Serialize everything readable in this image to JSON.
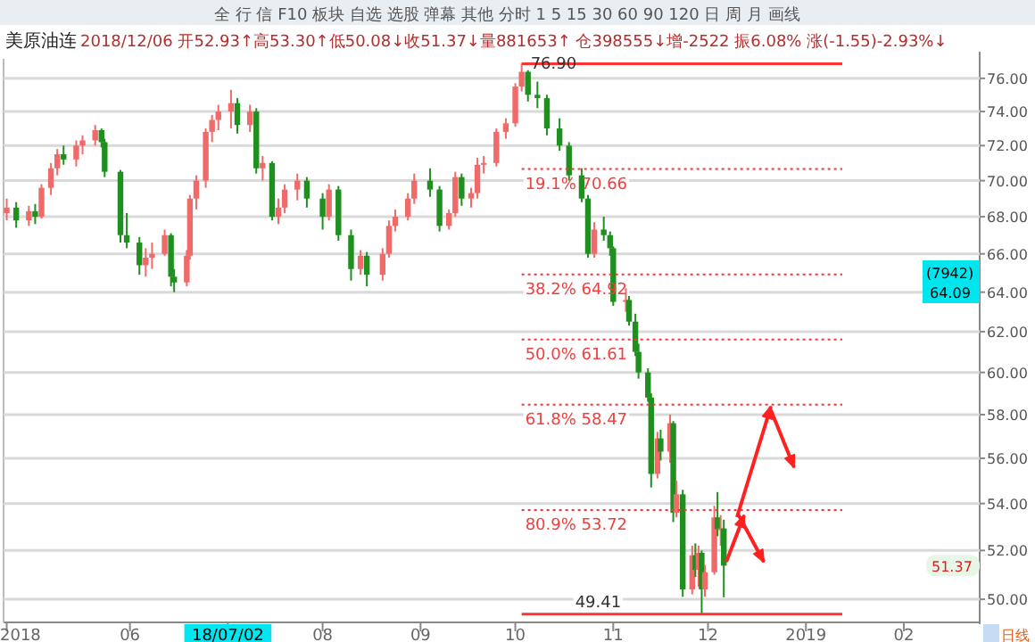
{
  "chart_data": {
    "type": "candlestick",
    "title": "美原油连",
    "subtitle": "2018/12/06 开52.93↑高53.30↑低50.08↓收51.37↓量881653↑ 仓398555↓增-2522 振6.08% 涨(-1.55)-2.93%↓",
    "x": [
      "2018-04-23",
      "2018-04-26",
      "2018-04-30",
      "2018-05-02",
      "2018-05-04",
      "2018-05-07",
      "2018-05-09",
      "2018-05-11",
      "2018-05-15",
      "2018-05-17",
      "2018-05-21",
      "2018-05-23",
      "2018-05-24",
      "2018-05-29",
      "2018-05-31",
      "2018-06-04",
      "2018-06-06",
      "2018-06-08",
      "2018-06-12",
      "2018-06-14",
      "2018-06-15",
      "2018-06-19",
      "2018-06-20",
      "2018-06-22",
      "2018-06-25",
      "2018-06-27",
      "2018-06-29",
      "2018-07-03",
      "2018-07-05",
      "2018-07-09",
      "2018-07-11",
      "2018-07-13",
      "2018-07-16",
      "2018-07-18",
      "2018-07-20",
      "2018-07-24",
      "2018-07-27",
      "2018-08-01",
      "2018-08-03",
      "2018-08-06",
      "2018-08-10",
      "2018-08-13",
      "2018-08-15",
      "2018-08-20",
      "2018-08-22",
      "2018-08-24",
      "2018-08-28",
      "2018-08-30",
      "2018-09-04",
      "2018-09-07",
      "2018-09-10",
      "2018-09-12",
      "2018-09-14",
      "2018-09-17",
      "2018-09-19",
      "2018-09-21",
      "2018-09-25",
      "2018-09-28",
      "2018-10-01",
      "2018-10-03",
      "2018-10-05",
      "2018-10-08",
      "2018-10-11",
      "2018-10-15",
      "2018-10-18",
      "2018-10-22",
      "2018-10-24",
      "2018-10-26",
      "2018-10-29",
      "2018-10-31",
      "2018-11-01",
      "2018-11-05",
      "2018-11-06",
      "2018-11-08",
      "2018-11-09",
      "2018-11-12",
      "2018-11-13",
      "2018-11-15",
      "2018-11-16",
      "2018-11-19",
      "2018-11-20",
      "2018-11-21",
      "2018-11-23",
      "2018-11-26",
      "2018-11-27",
      "2018-11-28",
      "2018-11-29",
      "2018-11-30",
      "2018-12-03",
      "2018-12-04",
      "2018-12-05",
      "2018-12-06"
    ],
    "ohlc": [
      [
        68.2,
        69.0,
        67.8,
        68.5
      ],
      [
        68.5,
        68.8,
        67.4,
        67.8
      ],
      [
        67.8,
        68.6,
        67.5,
        68.3
      ],
      [
        68.3,
        68.7,
        67.6,
        68.0
      ],
      [
        68.0,
        69.8,
        67.9,
        69.6
      ],
      [
        69.6,
        71.0,
        69.2,
        70.7
      ],
      [
        70.7,
        71.8,
        70.3,
        71.5
      ],
      [
        71.5,
        72.0,
        70.9,
        71.2
      ],
      [
        71.2,
        72.3,
        70.8,
        72.0
      ],
      [
        72.0,
        72.6,
        71.5,
        72.3
      ],
      [
        72.3,
        73.2,
        72.0,
        72.9
      ],
      [
        72.9,
        73.0,
        71.9,
        72.2
      ],
      [
        72.2,
        72.4,
        70.2,
        70.5
      ],
      [
        70.5,
        70.6,
        66.6,
        67.0
      ],
      [
        67.0,
        68.2,
        66.3,
        66.6
      ],
      [
        66.6,
        66.9,
        64.9,
        65.4
      ],
      [
        65.4,
        66.3,
        64.8,
        65.8
      ],
      [
        65.8,
        66.6,
        65.2,
        66.0
      ],
      [
        66.0,
        67.3,
        65.9,
        67.0
      ],
      [
        67.0,
        67.1,
        64.3,
        64.8
      ],
      [
        64.8,
        65.2,
        64.0,
        64.5
      ],
      [
        64.5,
        66.2,
        64.3,
        65.9
      ],
      [
        65.9,
        69.2,
        65.7,
        69.0
      ],
      [
        69.0,
        70.3,
        68.4,
        70.0
      ],
      [
        70.0,
        73.0,
        69.6,
        72.8
      ],
      [
        72.8,
        73.8,
        72.2,
        73.5
      ],
      [
        73.5,
        74.4,
        72.9,
        74.0
      ],
      [
        74.0,
        75.3,
        73.0,
        74.5
      ],
      [
        74.5,
        74.8,
        72.7,
        73.2
      ],
      [
        73.2,
        74.4,
        72.8,
        74.0
      ],
      [
        74.0,
        74.2,
        70.4,
        70.7
      ],
      [
        70.7,
        71.4,
        70.0,
        71.0
      ],
      [
        71.0,
        71.1,
        67.8,
        68.0
      ],
      [
        68.0,
        69.0,
        67.6,
        68.5
      ],
      [
        68.5,
        69.8,
        68.2,
        69.5
      ],
      [
        69.5,
        70.4,
        68.9,
        70.0
      ],
      [
        70.0,
        70.2,
        68.5,
        69.0
      ],
      [
        69.0,
        69.3,
        67.3,
        68.0
      ],
      [
        68.0,
        69.8,
        67.8,
        69.5
      ],
      [
        69.5,
        69.7,
        66.7,
        67.0
      ],
      [
        67.0,
        67.3,
        64.6,
        65.2
      ],
      [
        65.2,
        66.2,
        64.9,
        65.9
      ],
      [
        65.9,
        66.1,
        64.3,
        64.9
      ],
      [
        64.9,
        66.3,
        64.6,
        66.0
      ],
      [
        66.0,
        67.8,
        65.8,
        67.5
      ],
      [
        67.5,
        68.4,
        67.2,
        68.0
      ],
      [
        68.0,
        69.3,
        67.8,
        69.0
      ],
      [
        69.0,
        70.4,
        68.7,
        70.0
      ],
      [
        70.0,
        70.7,
        69.1,
        69.5
      ],
      [
        69.5,
        69.7,
        67.2,
        67.5
      ],
      [
        67.5,
        68.4,
        67.3,
        68.2
      ],
      [
        68.2,
        70.5,
        68.0,
        70.2
      ],
      [
        70.2,
        70.4,
        68.6,
        69.0
      ],
      [
        69.0,
        69.6,
        68.5,
        69.3
      ],
      [
        69.3,
        71.3,
        69.0,
        70.9
      ],
      [
        70.9,
        71.4,
        70.4,
        71.0
      ],
      [
        71.0,
        73.0,
        70.8,
        72.8
      ],
      [
        72.8,
        73.6,
        72.4,
        73.3
      ],
      [
        73.3,
        75.7,
        73.1,
        75.5
      ],
      [
        75.5,
        76.9,
        75.2,
        76.4
      ],
      [
        76.4,
        76.5,
        74.6,
        75.0
      ],
      [
        75.0,
        75.8,
        74.2,
        74.8
      ],
      [
        74.8,
        75.0,
        72.6,
        73.0
      ],
      [
        73.0,
        73.6,
        71.7,
        72.0
      ],
      [
        72.0,
        72.2,
        70.0,
        70.3
      ],
      [
        70.3,
        70.7,
        68.8,
        69.0
      ],
      [
        69.0,
        69.2,
        65.8,
        66.0
      ],
      [
        66.0,
        67.7,
        65.8,
        67.3
      ],
      [
        67.3,
        68.0,
        66.7,
        67.0
      ],
      [
        67.0,
        67.2,
        65.9,
        66.3
      ],
      [
        66.3,
        66.4,
        63.3,
        63.5
      ],
      [
        63.5,
        64.2,
        63.0,
        63.6
      ],
      [
        63.6,
        63.8,
        62.3,
        62.5
      ],
      [
        62.5,
        62.9,
        60.8,
        61.0
      ],
      [
        61.0,
        61.4,
        59.7,
        60.0
      ],
      [
        60.0,
        60.2,
        58.6,
        58.8
      ],
      [
        58.8,
        59.0,
        54.7,
        55.3
      ],
      [
        55.3,
        57.2,
        55.1,
        56.9
      ],
      [
        56.9,
        57.3,
        55.9,
        56.3
      ],
      [
        56.3,
        58.0,
        55.8,
        57.6
      ],
      [
        57.6,
        57.7,
        53.2,
        53.6
      ],
      [
        53.6,
        55.0,
        53.4,
        54.4
      ],
      [
        54.4,
        54.6,
        50.1,
        50.4
      ],
      [
        50.4,
        52.2,
        50.2,
        51.8
      ],
      [
        51.8,
        52.3,
        50.9,
        51.2
      ],
      [
        51.2,
        52.2,
        50.5,
        51.9
      ],
      [
        51.9,
        52.0,
        49.41,
        50.4
      ],
      [
        50.4,
        51.4,
        50.1,
        51.1
      ],
      [
        51.1,
        53.9,
        51.0,
        53.4
      ],
      [
        53.4,
        54.5,
        52.6,
        52.9
      ],
      [
        52.9,
        53.5,
        52.2,
        52.93
      ],
      [
        52.93,
        53.3,
        50.08,
        51.37
      ]
    ],
    "colors": [
      "#f06a6a",
      "#1f8f1f",
      "#f06a6a",
      "#1f8f1f",
      "#f06a6a",
      "#f06a6a",
      "#f06a6a",
      "#1f8f1f",
      "#f06a6a",
      "#f06a6a",
      "#f06a6a",
      "#1f8f1f",
      "#1f8f1f",
      "#1f8f1f",
      "#1f8f1f",
      "#1f8f1f",
      "#f06a6a",
      "#f06a6a",
      "#f06a6a",
      "#1f8f1f",
      "#1f8f1f",
      "#f06a6a",
      "#f06a6a",
      "#f06a6a",
      "#f06a6a",
      "#f06a6a",
      "#f06a6a",
      "#f06a6a",
      "#1f8f1f",
      "#f06a6a",
      "#1f8f1f",
      "#f06a6a",
      "#1f8f1f",
      "#f06a6a",
      "#f06a6a",
      "#f06a6a",
      "#1f8f1f",
      "#1f8f1f",
      "#f06a6a",
      "#1f8f1f",
      "#1f8f1f",
      "#f06a6a",
      "#1f8f1f",
      "#f06a6a",
      "#f06a6a",
      "#f06a6a",
      "#f06a6a",
      "#f06a6a",
      "#1f8f1f",
      "#1f8f1f",
      "#f06a6a",
      "#f06a6a",
      "#1f8f1f",
      "#f06a6a",
      "#f06a6a",
      "#f06a6a",
      "#f06a6a",
      "#f06a6a",
      "#f06a6a",
      "#f06a6a",
      "#1f8f1f",
      "#1f8f1f",
      "#1f8f1f",
      "#1f8f1f",
      "#1f8f1f",
      "#1f8f1f",
      "#1f8f1f",
      "#f06a6a",
      "#1f8f1f",
      "#1f8f1f",
      "#1f8f1f",
      "#f06a6a",
      "#1f8f1f",
      "#1f8f1f",
      "#1f8f1f",
      "#1f8f1f",
      "#1f8f1f",
      "#f06a6a",
      "#1f8f1f",
      "#f06a6a",
      "#1f8f1f",
      "#f06a6a",
      "#1f8f1f",
      "#f06a6a",
      "#1f8f1f",
      "#f06a6a",
      "#1f8f1f",
      "#f06a6a",
      "#f06a6a",
      "#1f8f1f",
      "#f06a6a",
      "#1f8f1f"
    ],
    "log": true,
    "ylim": [
      49.15,
      77.2
    ],
    "yticks": [
      {
        "value": 50,
        "label": "50.00"
      },
      {
        "value": 52,
        "label": "52.00"
      },
      {
        "value": 54,
        "label": "54.00"
      },
      {
        "value": 56,
        "label": "56.00"
      },
      {
        "value": 58,
        "label": "58.00"
      },
      {
        "value": 60,
        "label": "60.00"
      },
      {
        "value": 62,
        "label": "62.00"
      },
      {
        "value": 64,
        "label": "64.00"
      },
      {
        "value": 66,
        "label": "66.00"
      },
      {
        "value": 68,
        "label": "68.00"
      },
      {
        "value": 70,
        "label": "70.00"
      },
      {
        "value": 72,
        "label": "72.00"
      },
      {
        "value": 74,
        "label": "74.00"
      },
      {
        "value": 76,
        "label": "76.00"
      }
    ],
    "xlim": [
      "2018-04-22",
      "2019-02-25"
    ],
    "xticks": [
      {
        "value": "2018-04-23",
        "label": "2018"
      },
      {
        "value": "2018-06-01",
        "label": "06"
      },
      {
        "value": "2018-07-02",
        "label": "18/07/02"
      },
      {
        "value": "2018-08-01",
        "label": "08"
      },
      {
        "value": "2018-09-01",
        "label": "09"
      },
      {
        "value": "2018-10-01",
        "label": "10"
      },
      {
        "value": "2018-11-01",
        "label": "11"
      },
      {
        "value": "2018-12-01",
        "label": "12"
      },
      {
        "value": "2019-01-01",
        "label": "2019"
      },
      {
        "value": "2019-02-01",
        "label": "02"
      }
    ],
    "grid": "y",
    "ref_lines": [
      {
        "axis": "y",
        "value": 76.9,
        "label": "76.90",
        "color": "#ff3333",
        "line_style": "solid"
      },
      {
        "axis": "y",
        "value": 70.66,
        "label": "19.1% 70.66",
        "color": "#ff3333",
        "line_style": "dotted"
      },
      {
        "axis": "y",
        "value": 64.92,
        "label": "38.2% 64.92",
        "color": "#ff3333",
        "line_style": "dotted"
      },
      {
        "axis": "y",
        "value": 61.61,
        "label": "50.0% 61.61",
        "color": "#ff3333",
        "line_style": "dotted"
      },
      {
        "axis": "y",
        "value": 58.47,
        "label": "61.8% 58.47",
        "color": "#ff3333",
        "line_style": "dotted"
      },
      {
        "axis": "y",
        "value": 53.72,
        "label": "80.9% 53.72",
        "color": "#ff3333",
        "line_style": "dotted"
      },
      {
        "axis": "y",
        "value": 49.41,
        "label": "49.41",
        "color": "#ff3333",
        "line_style": "solid"
      }
    ],
    "annotations": [
      "全 行 信 F10 板块 自选 选股 弹幕 其他 分时 1 5 15 30 60 90 120 日 周 月 画线",
      "(7942)",
      "64.09",
      "51.37",
      "日线"
    ]
  }
}
